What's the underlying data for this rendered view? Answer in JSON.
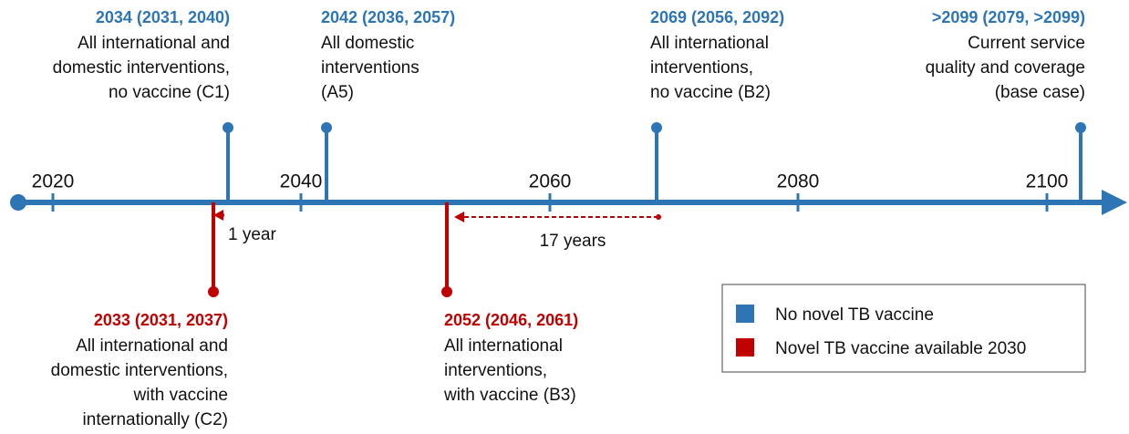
{
  "axis": {
    "labels": [
      "2020",
      "2040",
      "2060",
      "2080",
      "2100"
    ]
  },
  "events": [
    {
      "header": "2034 (2031, 2040)",
      "lines": [
        "All international and",
        "domestic interventions,",
        "no vaccine (C1)"
      ]
    },
    {
      "header": "2042 (2036, 2057)",
      "lines": [
        "All domestic",
        "interventions",
        "(A5)"
      ]
    },
    {
      "header": "2069 (2056, 2092)",
      "lines": [
        "All international",
        "interventions,",
        "no vaccine (B2)"
      ]
    },
    {
      "header": ">2099 (2079, >2099)",
      "lines": [
        "Current service",
        "quality and coverage",
        "(base case)"
      ]
    },
    {
      "header": "2033 (2031, 2037)",
      "lines": [
        "All international and",
        "domestic interventions,",
        "with vaccine",
        "internationally (C2)"
      ]
    },
    {
      "header": "2052 (2046, 2061)",
      "lines": [
        "All international",
        "interventions,",
        "with vaccine (B3)"
      ]
    }
  ],
  "annotations": [
    "1 year",
    "17 years"
  ],
  "legend": [
    "No novel TB vaccine",
    "Novel TB vaccine available 2030"
  ]
}
